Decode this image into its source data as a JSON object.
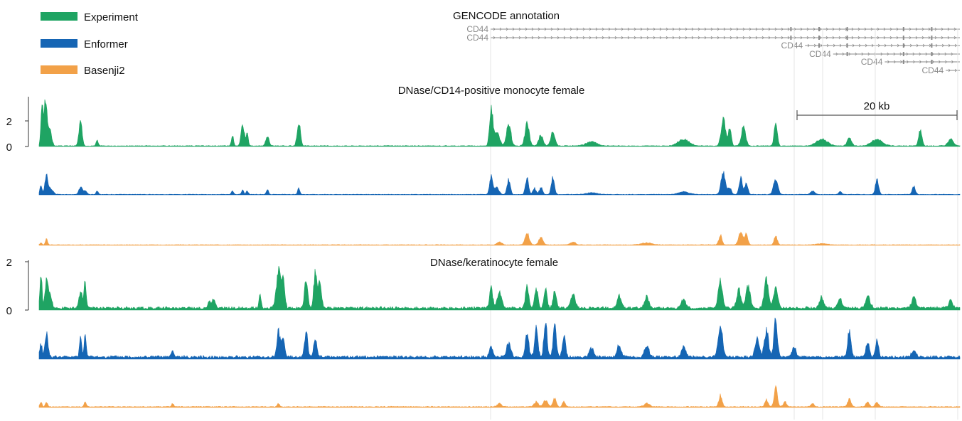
{
  "legend": [
    {
      "label": "Experiment",
      "color": "#1fa463"
    },
    {
      "label": "Enformer",
      "color": "#1565b4"
    },
    {
      "label": "Basenji2",
      "color": "#f2a148"
    }
  ],
  "gencode": {
    "title": "GENCODE annotation",
    "transcripts": [
      {
        "label": "CD44",
        "start_frac": 0.0,
        "end_frac": 1.0,
        "strand": "+"
      },
      {
        "label": "CD44",
        "start_frac": 0.0,
        "end_frac": 1.0,
        "strand": "+"
      },
      {
        "label": "CD44",
        "start_frac": 0.67,
        "end_frac": 1.0,
        "strand": "+"
      },
      {
        "label": "CD44",
        "start_frac": 0.73,
        "end_frac": 1.0,
        "strand": "+"
      },
      {
        "label": "CD44",
        "start_frac": 0.84,
        "end_frac": 1.0,
        "strand": "+"
      },
      {
        "label": "CD44",
        "start_frac": 0.97,
        "end_frac": 1.0,
        "strand": "+"
      }
    ]
  },
  "scalebar": {
    "label": "20 kb"
  },
  "chart_data": [
    {
      "type": "area",
      "title": "DNase/CD14-positive monocyte female",
      "y_ticks": [
        "2",
        "0"
      ],
      "ylim": [
        0,
        3.7
      ],
      "grid": false,
      "legend_position": "top-left",
      "series": [
        {
          "name": "Experiment",
          "baseline": 0.05,
          "peaks": [
            [
              0.003,
              2.8,
              0.002
            ],
            [
              0.007,
              3.5,
              0.003
            ],
            [
              0.012,
              1.2,
              0.003
            ],
            [
              0.045,
              1.8,
              0.003
            ],
            [
              0.063,
              0.4,
              0.002
            ],
            [
              0.21,
              0.8,
              0.002
            ],
            [
              0.221,
              1.7,
              0.003
            ],
            [
              0.226,
              0.9,
              0.002
            ],
            [
              0.248,
              0.7,
              0.003
            ],
            [
              0.282,
              1.8,
              0.003
            ],
            [
              0.491,
              2.8,
              0.003
            ],
            [
              0.497,
              1.0,
              0.005
            ],
            [
              0.51,
              1.7,
              0.004
            ],
            [
              0.53,
              1.6,
              0.004
            ],
            [
              0.545,
              0.8,
              0.004
            ],
            [
              0.558,
              1.0,
              0.004
            ],
            [
              0.6,
              0.3,
              0.01
            ],
            [
              0.7,
              0.5,
              0.01
            ],
            [
              0.743,
              2.0,
              0.004
            ],
            [
              0.75,
              1.2,
              0.003
            ],
            [
              0.765,
              1.4,
              0.004
            ],
            [
              0.8,
              1.6,
              0.003
            ],
            [
              0.85,
              0.5,
              0.01
            ],
            [
              0.88,
              0.6,
              0.004
            ],
            [
              0.91,
              0.5,
              0.01
            ],
            [
              0.957,
              1.2,
              0.003
            ],
            [
              0.99,
              0.5,
              0.005
            ]
          ]
        },
        {
          "name": "Enformer",
          "baseline": 0.05,
          "peaks": [
            [
              0.002,
              1.0,
              0.002
            ],
            [
              0.008,
              2.2,
              0.003
            ],
            [
              0.013,
              0.6,
              0.004
            ],
            [
              0.045,
              0.9,
              0.003
            ],
            [
              0.05,
              0.5,
              0.003
            ],
            [
              0.063,
              0.4,
              0.002
            ],
            [
              0.21,
              0.4,
              0.002
            ],
            [
              0.221,
              0.5,
              0.002
            ],
            [
              0.226,
              0.4,
              0.002
            ],
            [
              0.248,
              0.6,
              0.002
            ],
            [
              0.282,
              0.8,
              0.002
            ],
            [
              0.491,
              2.0,
              0.003
            ],
            [
              0.497,
              0.8,
              0.004
            ],
            [
              0.51,
              1.7,
              0.003
            ],
            [
              0.53,
              1.8,
              0.003
            ],
            [
              0.538,
              0.7,
              0.003
            ],
            [
              0.545,
              0.8,
              0.003
            ],
            [
              0.558,
              1.9,
              0.003
            ],
            [
              0.6,
              0.2,
              0.01
            ],
            [
              0.7,
              0.3,
              0.01
            ],
            [
              0.743,
              2.5,
              0.004
            ],
            [
              0.75,
              0.8,
              0.003
            ],
            [
              0.762,
              1.9,
              0.003
            ],
            [
              0.768,
              1.3,
              0.003
            ],
            [
              0.8,
              1.8,
              0.004
            ],
            [
              0.84,
              0.4,
              0.004
            ],
            [
              0.87,
              0.3,
              0.003
            ],
            [
              0.91,
              1.7,
              0.003
            ],
            [
              0.95,
              0.9,
              0.003
            ]
          ]
        },
        {
          "name": "Basenji2",
          "baseline": 0.08,
          "peaks": [
            [
              0.002,
              0.3,
              0.002
            ],
            [
              0.008,
              0.9,
              0.002
            ],
            [
              0.5,
              0.5,
              0.004
            ],
            [
              0.53,
              1.7,
              0.004
            ],
            [
              0.545,
              1.1,
              0.004
            ],
            [
              0.58,
              0.4,
              0.005
            ],
            [
              0.66,
              0.3,
              0.01
            ],
            [
              0.74,
              1.4,
              0.003
            ],
            [
              0.762,
              1.8,
              0.004
            ],
            [
              0.768,
              1.5,
              0.003
            ],
            [
              0.8,
              1.3,
              0.003
            ],
            [
              0.85,
              0.2,
              0.01
            ]
          ]
        }
      ]
    },
    {
      "type": "area",
      "title": "DNase/keratinocyte female",
      "y_ticks": [
        "2",
        "0"
      ],
      "ylim": [
        0,
        2.2
      ],
      "grid": false,
      "series": [
        {
          "name": "Experiment",
          "baseline": 0.1,
          "peaks": [
            [
              0.002,
              1.6,
              0.002
            ],
            [
              0.008,
              1.2,
              0.003
            ],
            [
              0.012,
              0.6,
              0.003
            ],
            [
              0.045,
              0.8,
              0.003
            ],
            [
              0.05,
              1.2,
              0.002
            ],
            [
              0.185,
              0.3,
              0.003
            ],
            [
              0.19,
              0.4,
              0.003
            ],
            [
              0.24,
              0.6,
              0.002
            ],
            [
              0.26,
              1.7,
              0.004
            ],
            [
              0.265,
              1.2,
              0.003
            ],
            [
              0.29,
              1.4,
              0.003
            ],
            [
              0.3,
              1.6,
              0.003
            ],
            [
              0.305,
              1.1,
              0.003
            ],
            [
              0.491,
              0.9,
              0.003
            ],
            [
              0.5,
              0.7,
              0.004
            ],
            [
              0.53,
              1.1,
              0.003
            ],
            [
              0.54,
              0.9,
              0.003
            ],
            [
              0.55,
              0.8,
              0.003
            ],
            [
              0.56,
              0.8,
              0.003
            ],
            [
              0.58,
              0.6,
              0.004
            ],
            [
              0.63,
              0.5,
              0.004
            ],
            [
              0.66,
              0.5,
              0.004
            ],
            [
              0.7,
              0.4,
              0.004
            ],
            [
              0.74,
              1.2,
              0.004
            ],
            [
              0.76,
              0.8,
              0.004
            ],
            [
              0.77,
              1.0,
              0.004
            ],
            [
              0.79,
              1.3,
              0.004
            ],
            [
              0.8,
              0.9,
              0.004
            ],
            [
              0.85,
              0.5,
              0.004
            ],
            [
              0.87,
              0.4,
              0.004
            ],
            [
              0.9,
              0.6,
              0.004
            ],
            [
              0.95,
              0.5,
              0.004
            ],
            [
              0.99,
              0.3,
              0.004
            ]
          ]
        },
        {
          "name": "Enformer",
          "baseline": 0.1,
          "peaks": [
            [
              0.002,
              0.6,
              0.002
            ],
            [
              0.008,
              1.0,
              0.003
            ],
            [
              0.045,
              0.9,
              0.002
            ],
            [
              0.05,
              1.0,
              0.002
            ],
            [
              0.145,
              0.3,
              0.002
            ],
            [
              0.26,
              1.1,
              0.003
            ],
            [
              0.265,
              0.8,
              0.003
            ],
            [
              0.29,
              1.1,
              0.003
            ],
            [
              0.3,
              0.8,
              0.003
            ],
            [
              0.491,
              0.5,
              0.003
            ],
            [
              0.51,
              0.6,
              0.004
            ],
            [
              0.53,
              1.1,
              0.003
            ],
            [
              0.54,
              1.3,
              0.003
            ],
            [
              0.55,
              1.5,
              0.003
            ],
            [
              0.56,
              1.3,
              0.003
            ],
            [
              0.57,
              1.0,
              0.003
            ],
            [
              0.6,
              0.4,
              0.004
            ],
            [
              0.63,
              0.5,
              0.004
            ],
            [
              0.66,
              0.5,
              0.004
            ],
            [
              0.7,
              0.5,
              0.004
            ],
            [
              0.74,
              1.4,
              0.004
            ],
            [
              0.78,
              0.8,
              0.004
            ],
            [
              0.79,
              1.1,
              0.004
            ],
            [
              0.8,
              1.8,
              0.003
            ],
            [
              0.82,
              0.4,
              0.004
            ],
            [
              0.88,
              1.2,
              0.003
            ],
            [
              0.9,
              0.7,
              0.003
            ],
            [
              0.91,
              0.7,
              0.003
            ],
            [
              0.95,
              0.3,
              0.004
            ]
          ]
        },
        {
          "name": "Basenji2",
          "baseline": 0.05,
          "peaks": [
            [
              0.002,
              0.3,
              0.002
            ],
            [
              0.008,
              0.3,
              0.002
            ],
            [
              0.05,
              0.3,
              0.002
            ],
            [
              0.145,
              0.2,
              0.002
            ],
            [
              0.26,
              0.2,
              0.002
            ],
            [
              0.5,
              0.2,
              0.004
            ],
            [
              0.54,
              0.3,
              0.004
            ],
            [
              0.55,
              0.4,
              0.004
            ],
            [
              0.56,
              0.5,
              0.003
            ],
            [
              0.57,
              0.3,
              0.003
            ],
            [
              0.66,
              0.2,
              0.005
            ],
            [
              0.74,
              0.7,
              0.003
            ],
            [
              0.79,
              0.4,
              0.003
            ],
            [
              0.8,
              1.2,
              0.003
            ],
            [
              0.81,
              0.3,
              0.003
            ],
            [
              0.84,
              0.2,
              0.003
            ],
            [
              0.88,
              0.5,
              0.003
            ],
            [
              0.9,
              0.3,
              0.003
            ],
            [
              0.91,
              0.3,
              0.003
            ]
          ]
        }
      ]
    }
  ]
}
